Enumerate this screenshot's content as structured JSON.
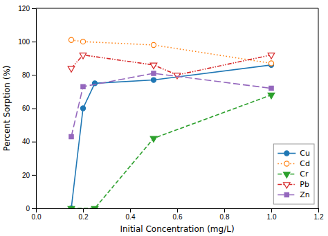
{
  "chart_data": {
    "type": "line",
    "xlabel": "Initial Concentration (mg/L)",
    "ylabel": "Percent Sorption (%)",
    "xlim": [
      0.0,
      1.2
    ],
    "ylim": [
      0,
      120
    ],
    "xticks": [
      {
        "value": 0.0,
        "label": "0.0"
      },
      0.2,
      0.4,
      0.6,
      0.8,
      {
        "value": 1.0,
        "label": "1.0"
      },
      1.2
    ],
    "yticks": [
      0,
      20,
      40,
      60,
      80,
      100,
      120
    ],
    "grid": false,
    "legend": "lower right",
    "series": [
      {
        "name": "Cu",
        "x": [
          0.15,
          0.2,
          0.25,
          0.5,
          1.0
        ],
        "values": [
          0,
          60,
          75,
          77,
          86
        ],
        "marker": "circle",
        "line_style": "solid"
      },
      {
        "name": "Cd",
        "x": [
          0.15,
          0.2,
          0.5,
          1.0
        ],
        "values": [
          101,
          100,
          98,
          87
        ],
        "marker": "circle-open",
        "line_style": "dotted"
      },
      {
        "name": "Cr",
        "x": [
          0.15,
          0.25,
          0.5,
          1.0
        ],
        "values": [
          0,
          0,
          42,
          68
        ],
        "marker": "triangle-down",
        "line_style": "dashed"
      },
      {
        "name": "Pb",
        "x": [
          0.15,
          0.2,
          0.5,
          0.6,
          1.0
        ],
        "values": [
          84,
          92,
          86,
          80,
          92
        ],
        "marker": "triangle-down-open",
        "line_style": "dash-dot-dot"
      },
      {
        "name": "Zn",
        "x": [
          0.15,
          0.2,
          0.5,
          1.0
        ],
        "values": [
          43,
          73,
          81,
          72
        ],
        "marker": "square",
        "line_style": "long-dashed"
      }
    ]
  }
}
